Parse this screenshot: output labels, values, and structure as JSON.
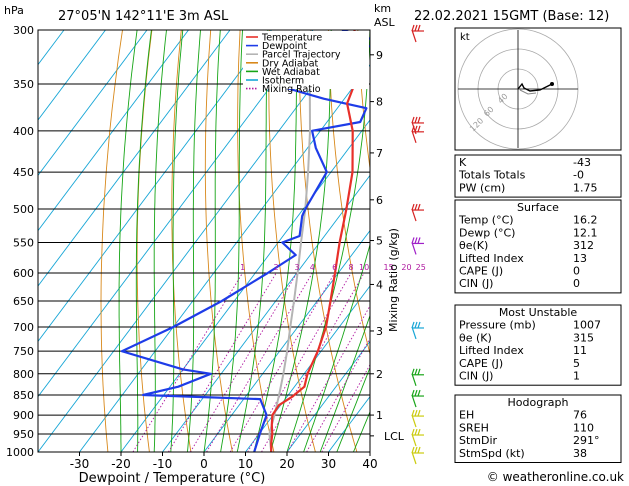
{
  "header": {
    "hpa_unit": "hPa",
    "location": "27°05'N  142°11'E  3m  ASL",
    "km_unit": "km",
    "asl_unit": "ASL",
    "datetime": "22.02.2021  15GMT  (Base: 12)"
  },
  "chart_data": {
    "type": "line",
    "xlabel": "Dewpoint / Temperature (°C)",
    "y2label": "Mixing Ratio (g/kg)",
    "x_ticks": [
      -30,
      -20,
      -10,
      0,
      10,
      20,
      30,
      40
    ],
    "pressure_levels": [
      300,
      350,
      400,
      450,
      500,
      550,
      600,
      650,
      700,
      750,
      800,
      850,
      900,
      950,
      1000
    ],
    "plim": [
      300,
      1000
    ],
    "xlim_at_1000hPa": [
      -40,
      40
    ],
    "km_ticks": [
      {
        "label": "9",
        "p": 322
      },
      {
        "label": "8",
        "p": 368
      },
      {
        "label": "7",
        "p": 426
      },
      {
        "label": "6",
        "p": 487
      },
      {
        "label": "5",
        "p": 547
      },
      {
        "label": "4",
        "p": 620
      },
      {
        "label": "3",
        "p": 708
      },
      {
        "label": "2",
        "p": 800
      },
      {
        "label": "1",
        "p": 900
      },
      {
        "label": "LCL",
        "p": 955
      }
    ],
    "mixing_ratio_labels": [
      "1",
      "2",
      "3",
      "4",
      "6",
      "8",
      "10",
      "15",
      "20",
      "25"
    ],
    "legend_position": "top-right",
    "series": [
      {
        "name": "Temperature",
        "color": "#e8302a",
        "points": [
          [
            1000,
            16.2
          ],
          [
            975,
            14.6
          ],
          [
            950,
            13.2
          ],
          [
            925,
            11.4
          ],
          [
            900,
            9.8
          ],
          [
            875,
            9.6
          ],
          [
            855,
            11.2
          ],
          [
            830,
            12.4
          ],
          [
            800,
            10.8
          ],
          [
            750,
            9.2
          ],
          [
            700,
            6.8
          ],
          [
            650,
            3.2
          ],
          [
            600,
            -0.8
          ],
          [
            550,
            -5.2
          ],
          [
            500,
            -9.6
          ],
          [
            450,
            -14.8
          ],
          [
            400,
            -22.2
          ],
          [
            370,
            -28.5
          ],
          [
            350,
            -30.2
          ],
          [
            320,
            -35.6
          ],
          [
            300,
            -40.0
          ]
        ]
      },
      {
        "name": "Dewpoint",
        "color": "#1e3ce8",
        "points": [
          [
            1000,
            12.1
          ],
          [
            950,
            10.2
          ],
          [
            900,
            8.4
          ],
          [
            860,
            4.0
          ],
          [
            855,
            -10.0
          ],
          [
            850,
            -25.0
          ],
          [
            830,
            -18.0
          ],
          [
            800,
            -12.5
          ],
          [
            790,
            -20.0
          ],
          [
            750,
            -38.0
          ],
          [
            700,
            -30.0
          ],
          [
            650,
            -23.0
          ],
          [
            600,
            -17.0
          ],
          [
            570,
            -13.5
          ],
          [
            550,
            -19.0
          ],
          [
            540,
            -16.0
          ],
          [
            510,
            -19.0
          ],
          [
            500,
            -19.5
          ],
          [
            450,
            -21.0
          ],
          [
            420,
            -28.0
          ],
          [
            400,
            -32.0
          ],
          [
            390,
            -22.0
          ],
          [
            375,
            -23.0
          ],
          [
            365,
            -35.0
          ],
          [
            350,
            -50.0
          ],
          [
            330,
            -45.0
          ],
          [
            320,
            -42.0
          ],
          [
            312,
            -30.0
          ],
          [
            300,
            -43.0
          ]
        ]
      },
      {
        "name": "Parcel Trajectory",
        "color": "#b4b4b4",
        "points": [
          [
            1000,
            16.2
          ],
          [
            950,
            12.5
          ],
          [
            900,
            10.3
          ],
          [
            850,
            7.8
          ],
          [
            800,
            5.0
          ],
          [
            750,
            1.8
          ],
          [
            700,
            -1.8
          ],
          [
            650,
            -5.6
          ],
          [
            600,
            -9.8
          ],
          [
            550,
            -14.5
          ],
          [
            500,
            -19.5
          ],
          [
            450,
            -25.5
          ],
          [
            400,
            -32.5
          ],
          [
            350,
            -41.0
          ],
          [
            300,
            -50.5
          ]
        ]
      },
      {
        "name": "Dry Adiabat",
        "color": "#d8881a"
      },
      {
        "name": "Wet Adiabat",
        "color": "#16a516"
      },
      {
        "name": "Isotherm",
        "color": "#17a6d6"
      },
      {
        "name": "Mixing Ratio",
        "color": "#b01aa0"
      }
    ]
  },
  "wind_barbs": [
    {
      "p": 300,
      "color": "#d62222"
    },
    {
      "p": 390,
      "color": "#d62222"
    },
    {
      "p": 400,
      "color": "#d62222"
    },
    {
      "p": 500,
      "color": "#d62222"
    },
    {
      "p": 550,
      "color": "#a020c8"
    },
    {
      "p": 700,
      "color": "#18a6d6"
    },
    {
      "p": 800,
      "color": "#1aa51a"
    },
    {
      "p": 850,
      "color": "#1aa51a"
    },
    {
      "p": 900,
      "color": "#cccc10"
    },
    {
      "p": 950,
      "color": "#cccc10"
    },
    {
      "p": 1000,
      "color": "#cccc10"
    }
  ],
  "hodograph": {
    "label": "kt",
    "rings": [
      "40",
      "60",
      "120"
    ]
  },
  "index_table": [
    {
      "label": "K",
      "value": "-43"
    },
    {
      "label": "Totals Totals",
      "value": "-0"
    },
    {
      "label": "PW (cm)",
      "value": "1.75"
    }
  ],
  "surface": {
    "title": "Surface",
    "rows": [
      {
        "label": "Temp (°C)",
        "value": "16.2"
      },
      {
        "label": "Dewp (°C)",
        "value": "12.1"
      },
      {
        "label": "θe(K)",
        "value": "312"
      },
      {
        "label": "Lifted Index",
        "value": "13"
      },
      {
        "label": "CAPE (J)",
        "value": "0"
      },
      {
        "label": "CIN (J)",
        "value": "0"
      }
    ]
  },
  "most_unstable": {
    "title": "Most Unstable",
    "rows": [
      {
        "label": "Pressure (mb)",
        "value": "1007"
      },
      {
        "label": "θe (K)",
        "value": "315"
      },
      {
        "label": "Lifted Index",
        "value": "11"
      },
      {
        "label": "CAPE (J)",
        "value": "5"
      },
      {
        "label": "CIN (J)",
        "value": "1"
      }
    ]
  },
  "hodograph_table": {
    "title": "Hodograph",
    "rows": [
      {
        "label": "EH",
        "value": "76"
      },
      {
        "label": "SREH",
        "value": "110"
      },
      {
        "label": "StmDir",
        "value": "291°"
      },
      {
        "label": "StmSpd (kt)",
        "value": "38"
      }
    ]
  },
  "footer": {
    "copyright": "© weatheronline.co.uk"
  }
}
